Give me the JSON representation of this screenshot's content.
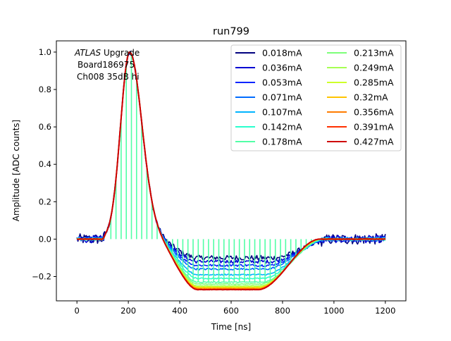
{
  "chart_data": {
    "type": "line",
    "title": "run799",
    "xlabel": "Time [ns]",
    "ylabel": "Amplitude [ADC counts]",
    "xlim": [
      -80,
      1280
    ],
    "ylim": [
      -0.33,
      1.06
    ],
    "grid": false,
    "legend_position": "top-right",
    "annotation": {
      "line1_italic": "ATLAS",
      "line1_rest": " Upgrade",
      "line2": "Board186975",
      "line3": "Ch008 35dB hi"
    },
    "xticks": [
      {
        "v": 0,
        "label": "0"
      },
      {
        "v": 200,
        "label": "200"
      },
      {
        "v": 400,
        "label": "400"
      },
      {
        "v": 600,
        "label": "600"
      },
      {
        "v": 800,
        "label": "800"
      },
      {
        "v": 1000,
        "label": "1000"
      },
      {
        "v": 1200,
        "label": "1200"
      }
    ],
    "yticks": [
      {
        "v": -0.2,
        "label": "−0.2"
      },
      {
        "v": 0.0,
        "label": "0.0"
      },
      {
        "v": 0.2,
        "label": "0.2"
      },
      {
        "v": 0.4,
        "label": "0.4"
      },
      {
        "v": 0.6,
        "label": "0.6"
      },
      {
        "v": 0.8,
        "label": "0.8"
      },
      {
        "v": 1.0,
        "label": "1.0"
      }
    ],
    "series": [
      {
        "name": "0.018mA",
        "color": "#00007f",
        "undershoot": -0.1,
        "recover": 860,
        "noise": 0.022,
        "spiky": false
      },
      {
        "name": "0.036mA",
        "color": "#0000d2",
        "undershoot": -0.12,
        "recover": 850,
        "noise": 0.015,
        "spiky": false
      },
      {
        "name": "0.053mA",
        "color": "#0024ff",
        "undershoot": -0.14,
        "recover": 840,
        "noise": 0.01,
        "spiky": false
      },
      {
        "name": "0.071mA",
        "color": "#006cff",
        "undershoot": -0.16,
        "recover": 835,
        "noise": 0.008,
        "spiky": false
      },
      {
        "name": "0.107mA",
        "color": "#00b4ff",
        "undershoot": -0.19,
        "recover": 830,
        "noise": 0.006,
        "spiky": false
      },
      {
        "name": "0.142mA",
        "color": "#29ffce",
        "undershoot": -0.21,
        "recover": 825,
        "noise": 0.005,
        "spiky": false
      },
      {
        "name": "0.178mA",
        "color": "#52ffa6",
        "undershoot": -0.23,
        "recover": 820,
        "noise": 0.004,
        "spiky": true
      },
      {
        "name": "0.213mA",
        "color": "#7cff79",
        "undershoot": -0.24,
        "recover": 815,
        "noise": 0.003,
        "spiky": false
      },
      {
        "name": "0.249mA",
        "color": "#a6ff52",
        "undershoot": -0.25,
        "recover": 812,
        "noise": 0.003,
        "spiky": false
      },
      {
        "name": "0.285mA",
        "color": "#ceff29",
        "undershoot": -0.255,
        "recover": 810,
        "noise": 0.002,
        "spiky": false
      },
      {
        "name": "0.32mA",
        "color": "#ffc400",
        "undershoot": -0.26,
        "recover": 808,
        "noise": 0.002,
        "spiky": false
      },
      {
        "name": "0.356mA",
        "color": "#ff7c00",
        "undershoot": -0.265,
        "recover": 806,
        "noise": 0.002,
        "spiky": false
      },
      {
        "name": "0.391mA",
        "color": "#ff3000",
        "undershoot": -0.27,
        "recover": 805,
        "noise": 0.002,
        "spiky": false
      },
      {
        "name": "0.427mA",
        "color": "#ce0000",
        "undershoot": -0.27,
        "recover": 805,
        "noise": 0.001,
        "spiky": false
      }
    ]
  }
}
